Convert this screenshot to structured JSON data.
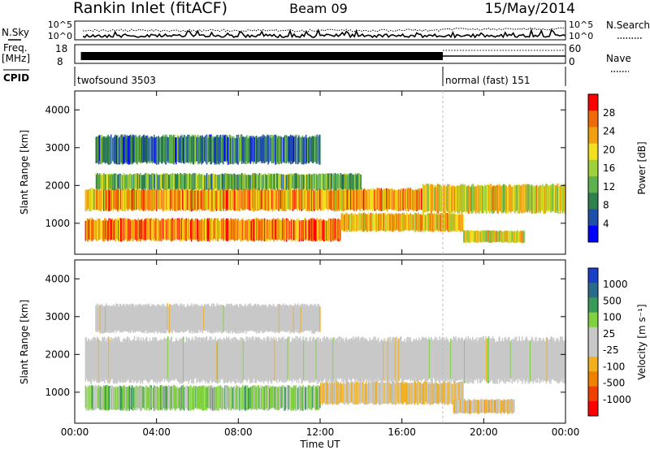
{
  "header": {
    "station": "Rankin Inlet (fitACF)",
    "beam": "Beam 09",
    "date": "15/May/2014"
  },
  "aux": {
    "nsky_label": "N.Sky",
    "nsky_ticks": [
      "10^5",
      "10^0"
    ],
    "nsearch_label": "N.Search",
    "nsearch_ticks": [
      "10^5",
      "10^0"
    ],
    "freq_label": "Freq.",
    "freq_unit": "[MHz]",
    "freq_ticks": [
      "18",
      "8"
    ],
    "nave_label": "Nave",
    "nave_ticks": [
      "60",
      "0"
    ],
    "cpid_label": "CPID",
    "cpid_modes": [
      {
        "name": "twofsound 3503",
        "start_hour": 0,
        "end_hour": 18
      },
      {
        "name": "normal (fast) 151",
        "start_hour": 18,
        "end_hour": 24
      }
    ]
  },
  "chart_data": [
    {
      "type": "heatmap",
      "title": "",
      "xlabel": "Time UT",
      "ylabel": "Slant Range [km]",
      "xlim": [
        0,
        24
      ],
      "ylim": [
        180,
        4500
      ],
      "x_ticks": [
        "00:00",
        "04:00",
        "08:00",
        "12:00",
        "16:00",
        "20:00",
        "00:00"
      ],
      "y_ticks": [
        1000,
        2000,
        3000,
        4000
      ],
      "colorbar": {
        "label": "Power [dB]",
        "ticks": [
          "28",
          "24",
          "20",
          "16",
          "12",
          "8",
          "4"
        ],
        "range": [
          0,
          30
        ],
        "colors": [
          "#0000ff",
          "#1f4fa8",
          "#2f7f4f",
          "#5fb04f",
          "#9fd23a",
          "#f0e020",
          "#f0a010",
          "#f06a0a",
          "#ff0000"
        ]
      },
      "bands": [
        {
          "t0": 0.5,
          "t1": 18,
          "r0": 1350,
          "r1": 1900,
          "power": 22
        },
        {
          "t0": 0.5,
          "t1": 13,
          "r0": 550,
          "r1": 1100,
          "power": 23
        },
        {
          "t0": 1,
          "t1": 14,
          "r0": 1900,
          "r1": 2300,
          "power": 12
        },
        {
          "t0": 13,
          "t1": 19,
          "r0": 800,
          "r1": 1250,
          "power": 20
        },
        {
          "t0": 17,
          "t1": 24,
          "r0": 1300,
          "r1": 2000,
          "power": 18
        },
        {
          "t0": 1,
          "t1": 12,
          "r0": 2600,
          "r1": 3300,
          "power": 8
        },
        {
          "t0": 19,
          "t1": 22,
          "r0": 500,
          "r1": 800,
          "power": 18
        }
      ]
    },
    {
      "type": "heatmap",
      "title": "",
      "xlabel": "Time UT",
      "ylabel": "Slant Range [km]",
      "xlim": [
        0,
        24
      ],
      "ylim": [
        180,
        4500
      ],
      "x_ticks": [
        "00:00",
        "04:00",
        "08:00",
        "12:00",
        "16:00",
        "20:00",
        "00:00"
      ],
      "y_ticks": [
        1000,
        2000,
        3000,
        4000
      ],
      "colorbar": {
        "label": "Velocity [m s⁻¹]",
        "ticks": [
          "1000",
          "500",
          "100",
          "25",
          "-25",
          "-100",
          "-500",
          "-1000"
        ],
        "range": [
          -1200,
          1200
        ],
        "colors": [
          "#ff0000",
          "#f04000",
          "#f08000",
          "#f0b020",
          "#c8c8c8",
          "#c8c8c8",
          "#80d040",
          "#3a9a5a",
          "#2a6a8a",
          "#1a40c8"
        ]
      },
      "bands": [
        {
          "t0": 0.5,
          "t1": 24,
          "r0": 1300,
          "r1": 2400,
          "velocity": 0
        },
        {
          "t0": 0.5,
          "t1": 12,
          "r0": 550,
          "r1": 1150,
          "velocity": 300
        },
        {
          "t0": 12,
          "t1": 19,
          "r0": 700,
          "r1": 1250,
          "velocity": -200
        },
        {
          "t0": 18.5,
          "t1": 21.5,
          "r0": 450,
          "r1": 800,
          "velocity": -250
        },
        {
          "t0": 1,
          "t1": 12,
          "r0": 2600,
          "r1": 3300,
          "velocity": 0
        }
      ]
    }
  ]
}
